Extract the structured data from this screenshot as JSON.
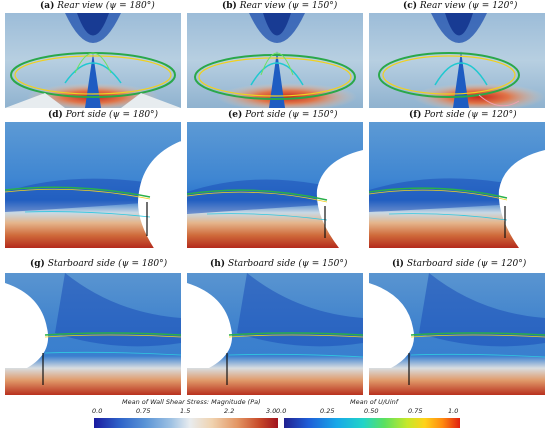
{
  "panels": {
    "a": {
      "letter": "(a)",
      "view": "Rear view",
      "angle": "(ψ = 180°)"
    },
    "b": {
      "letter": "(b)",
      "view": "Rear view",
      "angle": "(ψ = 150°)"
    },
    "c": {
      "letter": "(c)",
      "view": "Rear view",
      "angle": "(ψ = 120°)"
    },
    "d": {
      "letter": "(d)",
      "view": "Port side",
      "angle": "(ψ = 180°)"
    },
    "e": {
      "letter": "(e)",
      "view": "Port side",
      "angle": "(ψ = 150°)"
    },
    "f": {
      "letter": "(f)",
      "view": "Port side",
      "angle": "(ψ = 120°)"
    },
    "g": {
      "letter": "(g)",
      "view": "Starboard side",
      "angle": "(ψ = 180°)"
    },
    "h": {
      "letter": "(h)",
      "view": "Starboard side",
      "angle": "(ψ = 150°)"
    },
    "i": {
      "letter": "(i)",
      "view": "Starboard side",
      "angle": "(ψ = 120°)"
    }
  },
  "colorbar_shear": {
    "title": "Mean of Wall Shear Stress: Magnitude (Pa)",
    "ticks": [
      "0.0",
      "0.75",
      "1.5",
      "2.2",
      "3.0"
    ],
    "colors": [
      "#1a1aa0",
      "#2e63c9",
      "#5a94d6",
      "#9fc2e3",
      "#e8ecef",
      "#f0d3b0",
      "#e39563",
      "#c74a2a",
      "#a0121e"
    ]
  },
  "colorbar_velocity": {
    "title": "Mean of U/Uinf",
    "ticks": [
      "0.0",
      "0.25",
      "0.50",
      "0.75",
      "1.0"
    ],
    "colors": [
      "#202090",
      "#1f5fd8",
      "#18a8e8",
      "#22d4c8",
      "#5be060",
      "#c6e82a",
      "#ffd21a",
      "#ff8a10",
      "#e02010"
    ]
  }
}
